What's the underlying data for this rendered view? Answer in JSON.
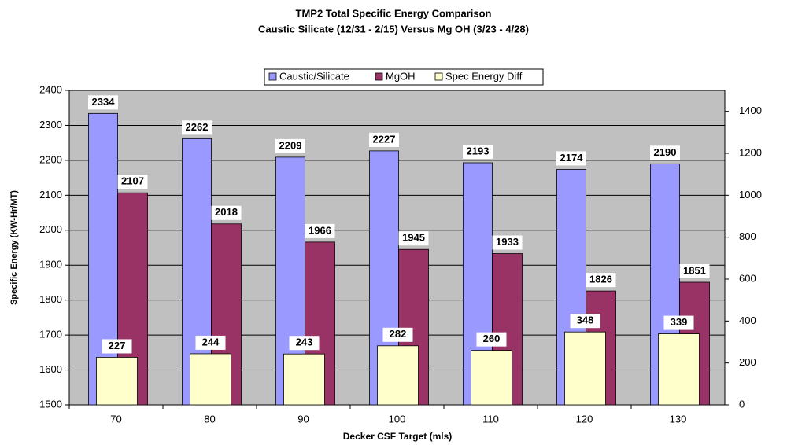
{
  "chart_data": {
    "type": "bar",
    "title": "TMP2 Total Specific Energy Comparison",
    "subtitle": "Caustic Silicate (12/31 - 2/15) Versus Mg OH (3/23 - 4/28)",
    "x_label": "Decker CSF Target (mls)",
    "y_label": "Specific Energy (KW-Hr/MT)",
    "categories": [
      "70",
      "80",
      "90",
      "100",
      "110",
      "120",
      "130"
    ],
    "series": [
      {
        "name": "Caustic/Silicate",
        "color": "#9999ff",
        "values": [
          2334,
          2262,
          2209,
          2227,
          2193,
          2174,
          2190
        ]
      },
      {
        "name": "MgOH",
        "color": "#993366",
        "values": [
          2107,
          2018,
          1966,
          1945,
          1933,
          1826,
          1851
        ]
      },
      {
        "name": "Spec Energy Diff",
        "color": "#ffffcc",
        "axis": "y2",
        "values": [
          227,
          244,
          243,
          282,
          260,
          348,
          339
        ]
      }
    ],
    "ylim": [
      1500,
      2400
    ],
    "yticks": [
      1500,
      1600,
      1700,
      1800,
      1900,
      2000,
      2100,
      2200,
      2300,
      2400
    ],
    "y2lim": [
      0,
      1500
    ],
    "y2ticks": [
      0,
      200,
      400,
      600,
      800,
      1000,
      1200,
      1400
    ],
    "grid": true,
    "legend": "top"
  }
}
